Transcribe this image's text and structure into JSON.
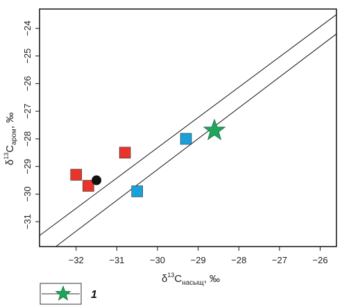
{
  "chart_data": {
    "type": "scatter",
    "xlabel": {
      "base": "δ",
      "sup": "13",
      "main": "C",
      "sub": "насыщ",
      "tail": ", ‰"
    },
    "ylabel": {
      "base": "δ",
      "sup": "13",
      "main": "C",
      "sub": "аром",
      "tail": ", ‰"
    },
    "xlim": [
      -32.9,
      -25.6
    ],
    "ylim": [
      -31.9,
      -23.3
    ],
    "x_ticks": [
      -32,
      -31,
      -30,
      -29,
      -28,
      -27,
      -26
    ],
    "y_ticks": [
      -24,
      -25,
      -26,
      -27,
      -28,
      -29,
      -30,
      -31
    ],
    "grid": false,
    "colors": {
      "red": "#e8352b",
      "blue": "#1aa0d8",
      "black": "#111111",
      "green": "#20a65a"
    },
    "series": [
      {
        "marker": "square",
        "color": "#e8352b",
        "points": [
          {
            "x": -32.0,
            "y": -29.3
          },
          {
            "x": -31.7,
            "y": -29.7
          },
          {
            "x": -30.8,
            "y": -28.5
          }
        ]
      },
      {
        "marker": "square",
        "color": "#1aa0d8",
        "points": [
          {
            "x": -30.5,
            "y": -29.9
          },
          {
            "x": -29.3,
            "y": -28.0
          }
        ]
      },
      {
        "marker": "circle",
        "color": "#111111",
        "points": [
          {
            "x": -31.5,
            "y": -29.5
          }
        ]
      },
      {
        "marker": "star",
        "color": "#20a65a",
        "points": [
          {
            "x": -28.6,
            "y": -27.7
          }
        ]
      }
    ],
    "lines": [
      {
        "from": {
          "x": -32.9,
          "y": -31.5
        },
        "to": {
          "x": -25.6,
          "y": -23.5
        }
      },
      {
        "from": {
          "x": -32.5,
          "y": -31.9
        },
        "to": {
          "x": -25.6,
          "y": -24.2
        }
      }
    ],
    "legend": [
      {
        "marker": "star",
        "color": "#20a65a",
        "label": "1"
      }
    ],
    "legend_position": "bottom-left"
  }
}
